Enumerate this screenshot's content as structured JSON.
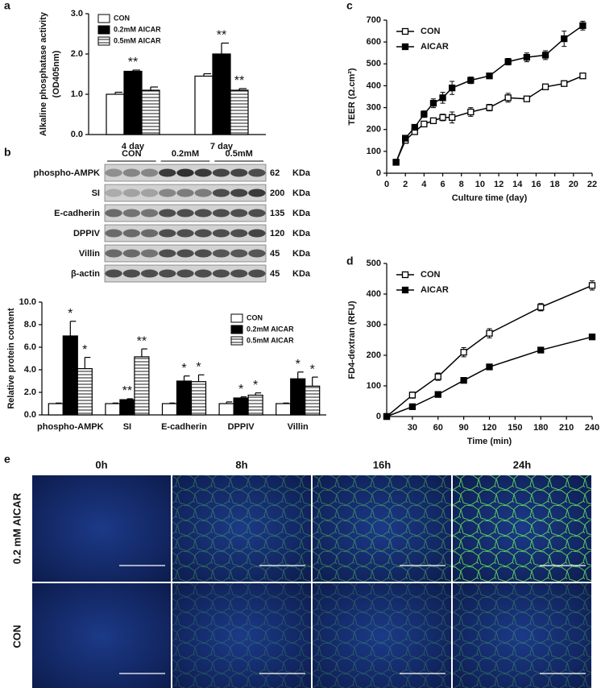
{
  "chart_data": [
    {
      "label": "a",
      "type": "bar",
      "y_label": "Alkaline phosphatase activity",
      "y_label_unit": "(OD405nm)",
      "categories": [
        "4 day",
        "7 day"
      ],
      "series": [
        {
          "name": "CON",
          "color": "#ffffff",
          "values": [
            1.0,
            1.45
          ],
          "errors": [
            0.05,
            0.06
          ],
          "annotations": [
            null,
            null
          ]
        },
        {
          "name": "0.2mM AICAR",
          "color": "#000000",
          "values": [
            1.57,
            2.0
          ],
          "errors": [
            0.03,
            0.27
          ],
          "annotations": [
            "**",
            "**"
          ]
        },
        {
          "name": "0.5mM AICAR",
          "color": "#ffffff",
          "pattern": "horizontal-lines",
          "values": [
            1.1,
            1.1
          ],
          "errors": [
            0.08,
            0.04
          ],
          "annotations": [
            null,
            "**"
          ]
        }
      ],
      "ylim": [
        0,
        3
      ],
      "yticks": [
        {
          "value": 0,
          "label": "0.0"
        },
        {
          "value": 1,
          "label": "1.0"
        },
        {
          "value": 2,
          "label": "2.0"
        },
        {
          "value": 3,
          "label": "3.0"
        }
      ],
      "legend": "upper left"
    },
    {
      "type": "bar",
      "y_label": "Relative protein content",
      "categories": [
        "phospho-AMPK",
        "SI",
        "E-cadherin",
        "DPPIV",
        "Villin"
      ],
      "series": [
        {
          "name": "CON",
          "color": "#ffffff",
          "values": [
            1.0,
            1.0,
            1.0,
            1.0,
            1.0
          ],
          "errors": [
            0.05,
            0.05,
            0.05,
            0.15,
            0.05
          ],
          "annotations": [
            null,
            null,
            null,
            null,
            null
          ]
        },
        {
          "name": "0.2mM AICAR",
          "color": "#000000",
          "values": [
            7.0,
            1.35,
            3.0,
            1.5,
            3.2
          ],
          "errors": [
            1.3,
            0.08,
            0.45,
            0.1,
            0.6
          ],
          "annotations": [
            "*",
            "**",
            "*",
            "*",
            "*"
          ]
        },
        {
          "name": "0.5mM AICAR",
          "color": "#ffffff",
          "pattern": "horizontal-lines",
          "values": [
            4.1,
            5.15,
            2.95,
            1.75,
            2.55
          ],
          "errors": [
            1.0,
            0.7,
            0.6,
            0.2,
            0.8
          ],
          "annotations": [
            "*",
            "**",
            "*",
            "*",
            "*"
          ]
        }
      ],
      "ylim": [
        0,
        10
      ],
      "yticks": [
        {
          "value": 0,
          "label": "0.0"
        },
        {
          "value": 2,
          "label": "2.0"
        },
        {
          "value": 4,
          "label": "4.0"
        },
        {
          "value": 6,
          "label": "6.0"
        },
        {
          "value": 8,
          "label": "8.0"
        },
        {
          "value": 10,
          "label": "10.0"
        }
      ],
      "legend": "upper right"
    },
    {
      "label": "c",
      "type": "line",
      "x_label": "Culture time (day)",
      "y_label": "TEER (Ω.cm²)",
      "x": [
        1,
        2,
        3,
        4,
        5,
        6,
        7,
        9,
        11,
        13,
        15,
        17,
        19,
        21
      ],
      "series": [
        {
          "name": "CON",
          "color": "#000000",
          "marker": "open-square",
          "values": [
            50,
            150,
            190,
            225,
            240,
            255,
            255,
            280,
            300,
            345,
            340,
            395,
            410,
            445
          ],
          "errors": [
            5,
            10,
            10,
            8,
            8,
            15,
            25,
            20,
            15,
            20,
            10,
            10,
            10,
            10
          ]
        },
        {
          "name": "AICAR",
          "color": "#000000",
          "marker": "filled-square",
          "values": [
            50,
            160,
            210,
            270,
            320,
            345,
            390,
            425,
            445,
            510,
            530,
            540,
            615,
            675
          ],
          "errors": [
            5,
            10,
            12,
            15,
            20,
            25,
            30,
            15,
            8,
            15,
            20,
            20,
            35,
            20
          ]
        }
      ],
      "xlim": [
        0,
        22
      ],
      "xticks": [
        0,
        2,
        4,
        6,
        8,
        10,
        12,
        14,
        16,
        18,
        20,
        22
      ],
      "ylim": [
        0,
        700
      ],
      "yticks": [
        0,
        100,
        200,
        300,
        400,
        500,
        600,
        700
      ],
      "legend": "upper left"
    },
    {
      "label": "d",
      "type": "line",
      "x_label": "Time (min)",
      "y_label": "FD4-dextran (RFU)",
      "x": [
        0,
        30,
        60,
        90,
        120,
        180,
        240
      ],
      "series": [
        {
          "name": "CON",
          "color": "#000000",
          "marker": "open-square",
          "values": [
            0,
            70,
            130,
            210,
            272,
            357,
            428
          ],
          "errors": [
            0,
            10,
            12,
            15,
            15,
            12,
            15
          ]
        },
        {
          "name": "AICAR",
          "color": "#000000",
          "marker": "filled-square",
          "values": [
            0,
            32,
            72,
            118,
            162,
            217,
            260
          ],
          "errors": [
            0,
            4,
            4,
            4,
            4,
            4,
            4
          ]
        }
      ],
      "xlim": [
        0,
        240
      ],
      "xticks": [
        30,
        60,
        90,
        120,
        150,
        180,
        210,
        240
      ],
      "ylim": [
        0,
        500
      ],
      "yticks": [
        0,
        100,
        200,
        300,
        400,
        500
      ],
      "legend": "upper left"
    }
  ],
  "blot": {
    "label": "b",
    "groups": [
      "CON",
      "0.2mM",
      "0.5mM"
    ],
    "unit": "KDa",
    "rows": [
      {
        "name": "phospho-AMPK",
        "size": "62"
      },
      {
        "name": "SI",
        "size": "200"
      },
      {
        "name": "E-cadherin",
        "size": "135"
      },
      {
        "name": "DPPIV",
        "size": "120"
      },
      {
        "name": "Villin",
        "size": "45"
      },
      {
        "name": "β-actin",
        "size": "45"
      }
    ]
  },
  "micrographs": {
    "label": "e",
    "columns": [
      "0h",
      "8h",
      "16h",
      "24h"
    ],
    "rows": [
      "0.2 mM AICAR",
      "CON"
    ]
  }
}
